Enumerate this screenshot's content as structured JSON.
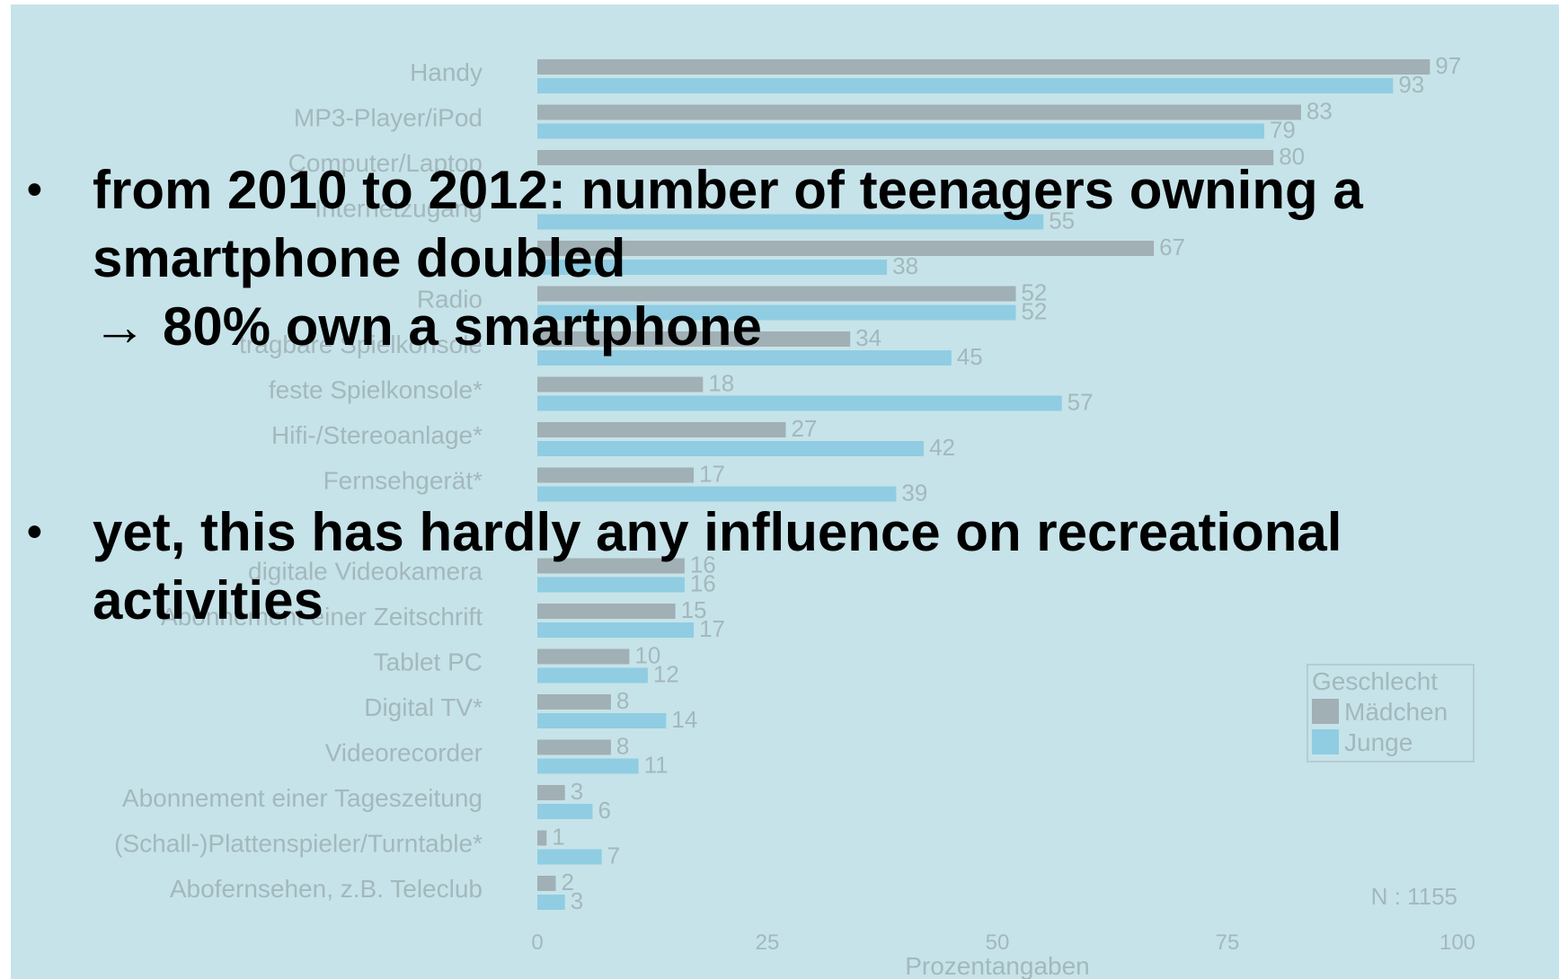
{
  "bullets": [
    {
      "lines": [
        "from 2010 to 2012: number of teenagers owning a",
        "smartphone doubled",
        "80% own a smartphone"
      ],
      "arrow_symbol": "→"
    },
    {
      "lines": [
        "yet, this has hardly any influence on recreational",
        "activities"
      ]
    }
  ],
  "bullet_symbol": "•",
  "chart_data": {
    "type": "bar",
    "orientation": "horizontal",
    "categories": [
      "Handy",
      "MP3-Player/iPod",
      "Computer/Laptop",
      "Internetzugang",
      "",
      "Radio",
      "tragbare Spielkonsole",
      "feste Spielkonsole*",
      "Hifi-/Stereoanlage*",
      "Fernsehgerät*",
      "",
      "digitale Videokamera",
      "Abonnement einer Zeitschrift",
      "Tablet PC",
      "Digital TV*",
      "Videorecorder",
      "Abonnement einer Tageszeitung",
      "(Schall-)Plattenspieler/Turntable*",
      "Abofernsehen, z.B. Teleclub"
    ],
    "series": [
      {
        "name": "Mädchen",
        "values": [
          97,
          83,
          80,
          null,
          67,
          52,
          34,
          18,
          27,
          17,
          null,
          16,
          15,
          10,
          8,
          8,
          3,
          1,
          2
        ]
      },
      {
        "name": "Junge",
        "values": [
          93,
          79,
          null,
          55,
          38,
          52,
          45,
          57,
          42,
          39,
          null,
          16,
          17,
          12,
          14,
          11,
          6,
          7,
          3
        ]
      }
    ],
    "xlabel": "Prozentangaben",
    "xlim": [
      0,
      100
    ],
    "xticks": [
      0,
      25,
      50,
      75,
      100
    ],
    "legend": {
      "title": "Geschlecht",
      "placement": "right",
      "entries": [
        "Mädchen",
        "Junge"
      ]
    },
    "note": "N : 1155",
    "colors": {
      "Mädchen": "#9aa7ab",
      "Junge": "#86c9e0"
    },
    "background": "#c6e3e9",
    "text_color": "#a3b8bd"
  }
}
